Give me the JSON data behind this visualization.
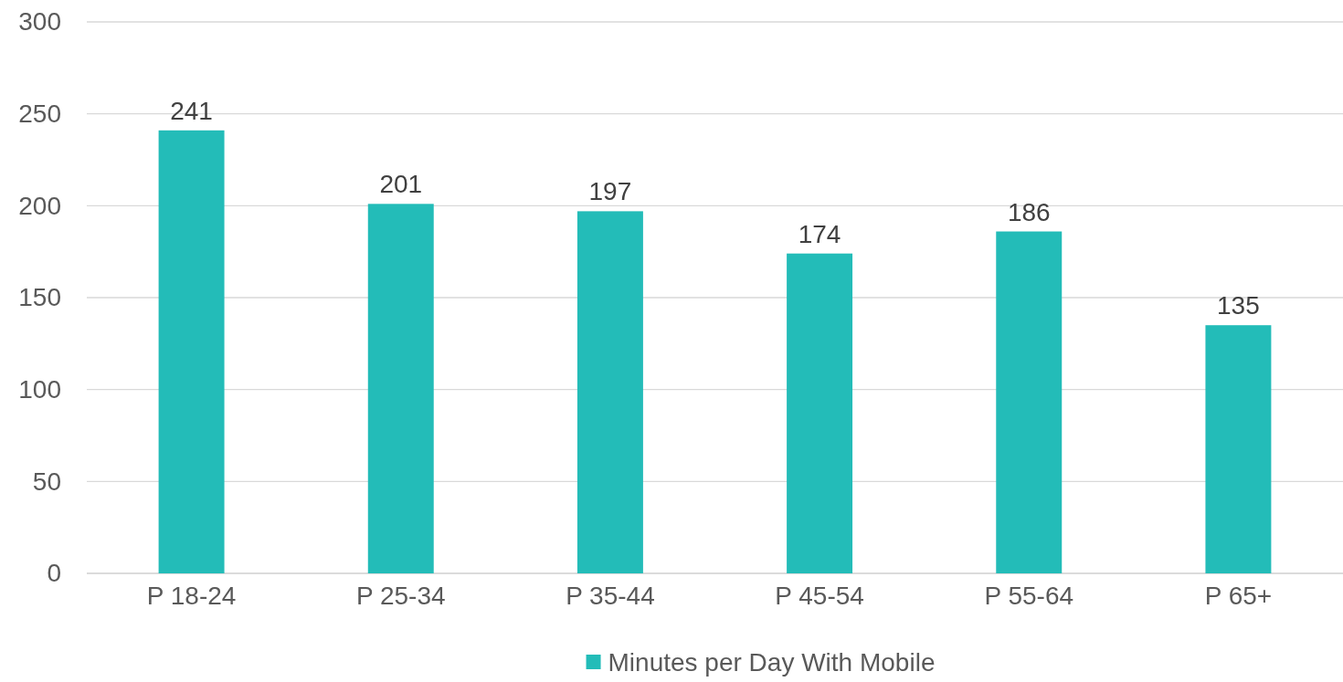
{
  "chart_data": {
    "type": "bar",
    "categories": [
      "P 18-24",
      "P 25-34",
      "P 35-44",
      "P 45-54",
      "P 55-64",
      "P 65+"
    ],
    "series": [
      {
        "name": "Minutes per Day With Mobile",
        "color": "#23bcb8",
        "values": [
          241,
          201,
          197,
          174,
          186,
          135
        ]
      }
    ],
    "ylim": [
      0,
      300
    ],
    "yticks": [
      0,
      50,
      100,
      150,
      200,
      250,
      300
    ],
    "grid": "y",
    "legend": "bottom",
    "data_labels": true
  }
}
